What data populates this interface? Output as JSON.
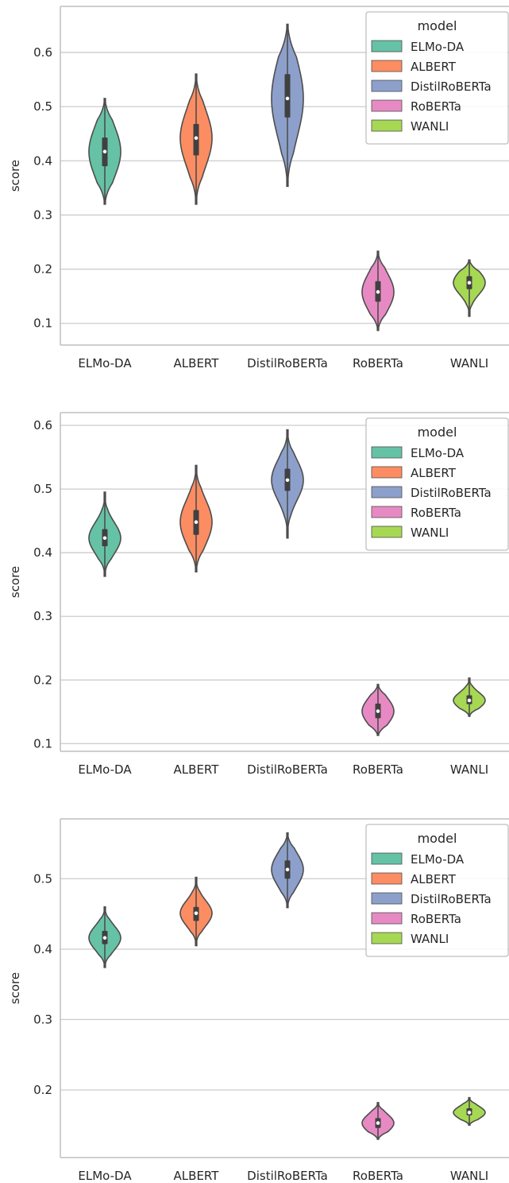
{
  "colors": {
    "ELMo-DA": "#66c2a5",
    "ALBERT": "#fc8d62",
    "DistilRoBERTa": "#8da0cb",
    "RoBERTa": "#e78ac3",
    "WANLI": "#a6d854",
    "grid": "#cccccc",
    "axis": "#bfbfbf",
    "violin_edge": "#4d4d4d"
  },
  "chart_data": [
    {
      "type": "violin",
      "ylabel": "score",
      "categories": [
        "ELMo-DA",
        "ALBERT",
        "DistilRoBERTa",
        "RoBERTa",
        "WANLI"
      ],
      "yticks": [
        0.1,
        0.2,
        0.3,
        0.4,
        0.5,
        0.6
      ],
      "ylim": [
        0.06,
        0.685
      ],
      "grid": true,
      "legend": {
        "title": "model",
        "placement": "top-right",
        "entries": [
          "ELMo-DA",
          "ALBERT",
          "DistilRoBERTa",
          "RoBERTa",
          "WANLI"
        ]
      },
      "series": [
        {
          "name": "ELMo-DA",
          "min": 0.32,
          "max": 0.515,
          "q1": 0.39,
          "median": 0.417,
          "q3": 0.443
        },
        {
          "name": "ALBERT",
          "min": 0.32,
          "max": 0.56,
          "q1": 0.41,
          "median": 0.442,
          "q3": 0.468
        },
        {
          "name": "DistilRoBERTa",
          "min": 0.353,
          "max": 0.652,
          "q1": 0.48,
          "median": 0.515,
          "q3": 0.56
        },
        {
          "name": "RoBERTa",
          "min": 0.087,
          "max": 0.233,
          "q1": 0.14,
          "median": 0.158,
          "q3": 0.178
        },
        {
          "name": "WANLI",
          "min": 0.113,
          "max": 0.217,
          "q1": 0.163,
          "median": 0.175,
          "q3": 0.187
        }
      ]
    },
    {
      "type": "violin",
      "ylabel": "score",
      "categories": [
        "ELMo-DA",
        "ALBERT",
        "DistilRoBERTa",
        "RoBERTa",
        "WANLI"
      ],
      "yticks": [
        0.1,
        0.2,
        0.3,
        0.4,
        0.5,
        0.6
      ],
      "ylim": [
        0.088,
        0.62
      ],
      "grid": true,
      "legend": {
        "title": "model",
        "placement": "top-right",
        "entries": [
          "ELMo-DA",
          "ALBERT",
          "DistilRoBERTa",
          "RoBERTa",
          "WANLI"
        ]
      },
      "series": [
        {
          "name": "ELMo-DA",
          "min": 0.363,
          "max": 0.495,
          "q1": 0.41,
          "median": 0.423,
          "q3": 0.437
        },
        {
          "name": "ALBERT",
          "min": 0.37,
          "max": 0.537,
          "q1": 0.428,
          "median": 0.448,
          "q3": 0.467
        },
        {
          "name": "DistilRoBERTa",
          "min": 0.423,
          "max": 0.593,
          "q1": 0.497,
          "median": 0.514,
          "q3": 0.532
        },
        {
          "name": "RoBERTa",
          "min": 0.113,
          "max": 0.193,
          "q1": 0.14,
          "median": 0.151,
          "q3": 0.163
        },
        {
          "name": "WANLI",
          "min": 0.143,
          "max": 0.203,
          "q1": 0.162,
          "median": 0.168,
          "q3": 0.176
        }
      ]
    },
    {
      "type": "violin",
      "ylabel": "score",
      "categories": [
        "ELMo-DA",
        "ALBERT",
        "DistilRoBERTa",
        "RoBERTa",
        "WANLI"
      ],
      "yticks": [
        0.2,
        0.3,
        0.4,
        0.5
      ],
      "ylim": [
        0.104,
        0.585
      ],
      "grid": true,
      "legend": {
        "title": "model",
        "placement": "top-right",
        "entries": [
          "ELMo-DA",
          "ALBERT",
          "DistilRoBERTa",
          "RoBERTa",
          "WANLI"
        ]
      },
      "series": [
        {
          "name": "ELMo-DA",
          "min": 0.374,
          "max": 0.46,
          "q1": 0.407,
          "median": 0.416,
          "q3": 0.426
        },
        {
          "name": "ALBERT",
          "min": 0.405,
          "max": 0.502,
          "q1": 0.44,
          "median": 0.451,
          "q3": 0.46
        },
        {
          "name": "DistilRoBERTa",
          "min": 0.459,
          "max": 0.565,
          "q1": 0.5,
          "median": 0.513,
          "q3": 0.526
        },
        {
          "name": "RoBERTa",
          "min": 0.13,
          "max": 0.182,
          "q1": 0.146,
          "median": 0.153,
          "q3": 0.16
        },
        {
          "name": "WANLI",
          "min": 0.15,
          "max": 0.189,
          "q1": 0.164,
          "median": 0.168,
          "q3": 0.174
        }
      ]
    }
  ]
}
